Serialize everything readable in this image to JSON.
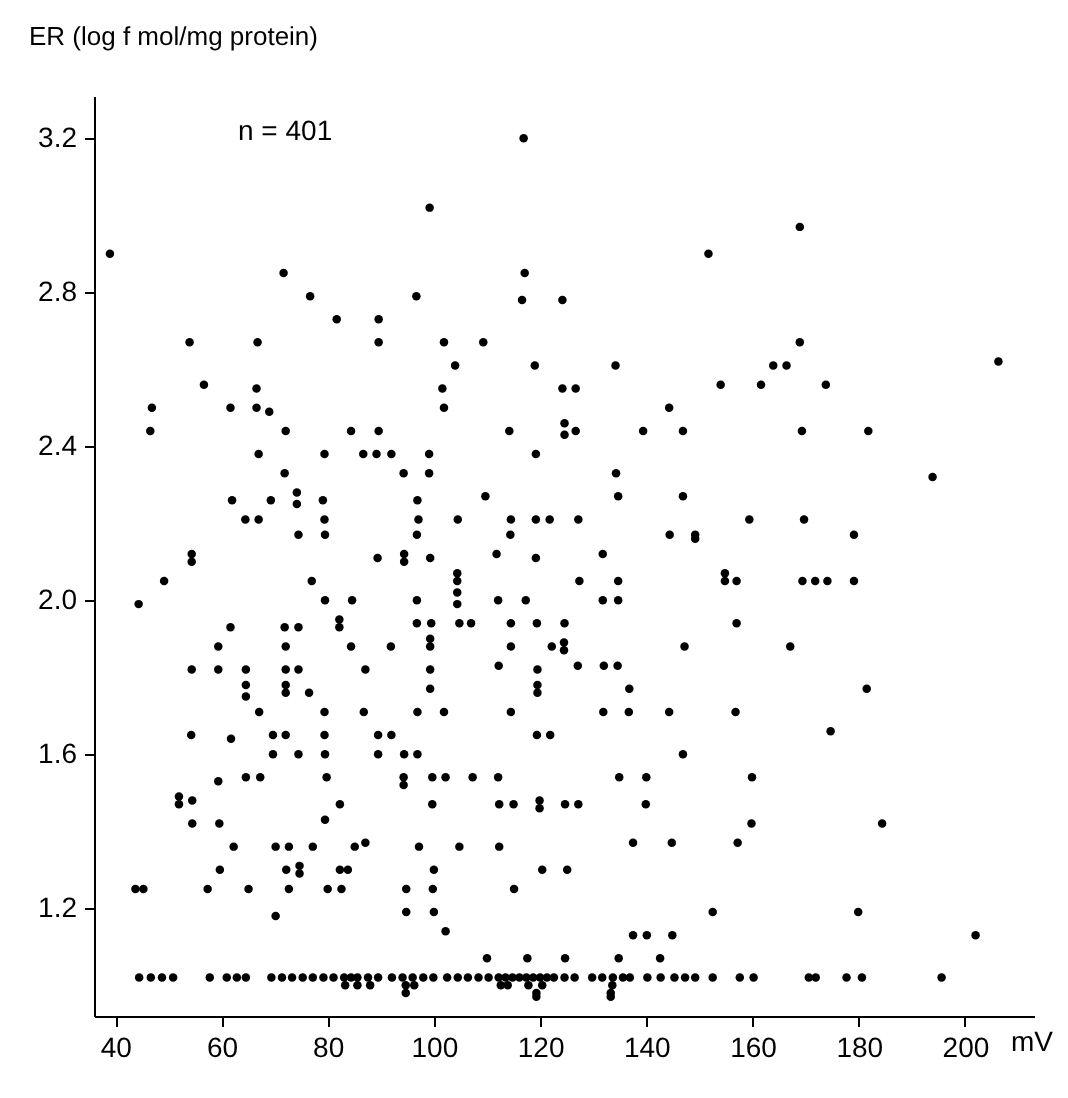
{
  "chart_data": {
    "type": "scatter",
    "xlabel": "mV",
    "ylabel": "ER (log f mol/mg protein)",
    "annotations": [
      "n = 401"
    ],
    "xlim": [
      36,
      213
    ],
    "ylim": [
      0.92,
      3.31
    ],
    "xticks": [
      40,
      60,
      80,
      100,
      120,
      140,
      160,
      180,
      200
    ],
    "yticks": [
      1.2,
      1.6,
      {
        "value": 2.0,
        "label": "2.0"
      },
      2.4,
      2.8,
      3.2
    ],
    "grid": false,
    "legend": false,
    "marker": "circle",
    "series": [
      {
        "color": "#000000",
        "x": [
          39.0,
          116.9,
          99.2,
          71.7,
          117.1,
          76.7,
          96.7,
          116.6,
          81.7,
          89.6,
          54.0,
          66.8,
          89.6,
          101.9,
          109.3,
          104.0,
          119.0,
          56.7,
          66.6,
          101.6,
          46.9,
          61.7,
          66.6,
          69.0,
          101.9,
          46.6,
          72.1,
          84.4,
          89.6,
          114.2,
          67.0,
          79.4,
          86.7,
          89.2,
          92.0,
          99.1,
          119.2,
          71.9,
          94.3,
          99.1,
          62.0,
          69.3,
          74.2,
          74.2,
          79.1,
          96.9,
          109.7,
          64.5,
          67.0,
          79.4,
          97.1,
          104.5,
          114.5,
          119.2,
          121.8
        ],
        "values": [
          2.9,
          3.2,
          3.02,
          2.85,
          2.85,
          2.79,
          2.79,
          2.78,
          2.73,
          2.73,
          2.67,
          2.67,
          2.67,
          2.67,
          2.67,
          2.61,
          2.61,
          2.56,
          2.55,
          2.55,
          2.5,
          2.5,
          2.5,
          2.49,
          2.5,
          2.44,
          2.44,
          2.44,
          2.44,
          2.44,
          2.38,
          2.38,
          2.38,
          2.38,
          2.38,
          2.38,
          2.38,
          2.33,
          2.33,
          2.33,
          2.26,
          2.26,
          2.28,
          2.25,
          2.26,
          2.26,
          2.27,
          2.21,
          2.21,
          2.21,
          2.21,
          2.21,
          2.21,
          2.21,
          2.21
        ]
      },
      {
        "color": "#000000",
        "x": [
          168.9,
          151.7,
          124.2,
          168.9,
          134.2,
          163.9,
          166.4,
          206.3,
          124.2,
          126.7,
          154.0,
          161.6,
          173.8,
          144.3,
          124.6,
          124.6,
          126.7,
          139.4,
          146.9,
          169.3,
          181.8,
          134.3,
          193.9,
          134.7,
          146.9,
          127.2,
          159.4,
          169.7
        ],
        "values": [
          2.97,
          2.9,
          2.78,
          2.67,
          2.61,
          2.61,
          2.61,
          2.62,
          2.55,
          2.55,
          2.56,
          2.56,
          2.56,
          2.5,
          2.46,
          2.43,
          2.44,
          2.44,
          2.44,
          2.44,
          2.44,
          2.33,
          2.32,
          2.27,
          2.27,
          2.21,
          2.21,
          2.21
        ]
      },
      {
        "color": "#000000",
        "x": [
          74.5,
          79.5,
          96.8,
          114.4,
          54.4,
          54.4,
          49.2,
          77.0,
          89.4,
          94.4,
          94.4,
          99.3,
          111.8,
          119.2,
          104.4,
          104.4,
          104.4,
          104.4,
          44.4,
          79.5,
          84.6,
          96.8,
          112.1,
          117.3,
          61.7,
          71.9,
          74.5,
          82.2,
          82.2,
          96.8,
          99.5,
          104.8,
          107.0,
          114.5,
          119.4,
          59.4,
          72.1,
          84.4,
          91.9,
          99.3,
          99.3,
          114.5,
          122.2,
          54.4,
          59.4,
          64.6,
          72.1,
          74.5,
          87.1,
          99.3,
          112.2,
          119.5,
          64.6,
          64.6,
          72.1,
          72.1,
          76.5,
          99.3,
          119.5,
          119.5,
          67.1,
          79.4,
          86.8,
          96.9,
          101.9,
          114.5,
          54.3,
          61.8,
          69.7,
          72.1,
          79.4,
          89.5,
          92.0,
          119.4,
          121.9,
          69.7,
          74.5,
          79.5,
          89.5,
          94.4,
          96.9,
          59.4,
          64.6,
          67.3,
          79.8,
          94.3,
          94.3,
          99.7,
          102.2,
          107.3,
          112.1,
          52.0,
          52.0,
          54.5,
          82.3,
          99.7,
          112.3,
          115.0,
          119.9,
          119.9,
          54.5,
          59.6,
          79.5,
          62.3,
          70.2,
          72.7,
          77.2,
          85.1,
          87.1,
          97.2,
          104.8,
          112.3,
          59.7,
          72.2,
          74.7,
          74.7,
          82.3,
          83.8,
          100.0,
          120.4,
          43.8,
          45.3,
          57.4,
          65.1,
          72.7,
          80.0,
          82.6,
          94.8,
          99.8,
          115.1,
          70.2,
          94.8,
          100.0,
          102.2,
          110.0,
          117.6
        ],
        "values": [
          2.17,
          2.17,
          2.17,
          2.17,
          2.12,
          2.1,
          2.05,
          2.05,
          2.11,
          2.12,
          2.1,
          2.11,
          2.12,
          2.11,
          2.07,
          2.05,
          2.02,
          1.99,
          1.99,
          2.0,
          2.0,
          2.0,
          2.0,
          2.0,
          1.93,
          1.93,
          1.93,
          1.95,
          1.93,
          1.94,
          1.94,
          1.94,
          1.94,
          1.94,
          1.94,
          1.88,
          1.88,
          1.88,
          1.88,
          1.9,
          1.88,
          1.88,
          1.88,
          1.82,
          1.82,
          1.82,
          1.82,
          1.82,
          1.82,
          1.82,
          1.83,
          1.82,
          1.78,
          1.75,
          1.78,
          1.76,
          1.76,
          1.77,
          1.78,
          1.76,
          1.71,
          1.71,
          1.71,
          1.71,
          1.71,
          1.71,
          1.65,
          1.64,
          1.65,
          1.65,
          1.65,
          1.65,
          1.65,
          1.65,
          1.65,
          1.6,
          1.6,
          1.6,
          1.6,
          1.6,
          1.6,
          1.53,
          1.54,
          1.54,
          1.54,
          1.54,
          1.52,
          1.54,
          1.54,
          1.54,
          1.54,
          1.49,
          1.47,
          1.48,
          1.47,
          1.47,
          1.47,
          1.47,
          1.48,
          1.46,
          1.42,
          1.42,
          1.43,
          1.36,
          1.36,
          1.36,
          1.36,
          1.36,
          1.37,
          1.36,
          1.36,
          1.36,
          1.3,
          1.3,
          1.31,
          1.29,
          1.3,
          1.3,
          1.3,
          1.3,
          1.25,
          1.25,
          1.25,
          1.25,
          1.25,
          1.25,
          1.25,
          1.25,
          1.25,
          1.25,
          1.18,
          1.19,
          1.19,
          1.14,
          1.07,
          1.07
        ]
      },
      {
        "color": "#000000",
        "x": [
          144.4,
          149.2,
          149.2,
          179.1,
          131.8,
          127.4,
          134.7,
          154.8,
          154.8,
          157.0,
          169.4,
          171.8,
          174.1,
          179.1,
          131.8,
          134.7,
          124.6,
          157.0,
          124.5,
          124.5,
          147.2,
          167.1,
          127.1,
          132.0,
          134.6,
          136.8,
          181.5,
          131.9,
          136.7,
          144.3,
          156.8,
          174.7,
          146.9,
          134.9,
          140.0,
          159.9,
          124.7,
          127.2,
          139.9,
          159.8,
          184.4,
          137.5,
          144.8,
          157.2,
          125.1,
          152.5,
          179.9,
          137.5,
          140.1,
          144.9,
          202.0,
          124.7,
          134.8,
          142.6
        ],
        "values": [
          2.17,
          2.17,
          2.16,
          2.17,
          2.12,
          2.05,
          2.05,
          2.07,
          2.05,
          2.05,
          2.05,
          2.05,
          2.05,
          2.05,
          2.0,
          2.0,
          1.94,
          1.94,
          1.89,
          1.87,
          1.88,
          1.88,
          1.83,
          1.83,
          1.83,
          1.77,
          1.77,
          1.71,
          1.71,
          1.71,
          1.71,
          1.66,
          1.6,
          1.54,
          1.54,
          1.54,
          1.47,
          1.47,
          1.47,
          1.42,
          1.42,
          1.37,
          1.37,
          1.37,
          1.3,
          1.19,
          1.19,
          1.13,
          1.13,
          1.13,
          1.13,
          1.07,
          1.07,
          1.07
        ]
      },
      {
        "color": "#000000",
        "x": [
          44.5,
          46.7,
          48.8,
          50.9,
          57.8,
          61.0,
          62.9,
          64.6,
          69.4,
          71.4,
          73.3,
          75.3,
          77.2,
          79.2,
          81.1,
          83.1,
          84.4,
          85.6,
          87.6,
          89.5,
          92.1,
          94.1,
          96.0,
          98.0,
          99.9,
          102.5,
          104.5,
          106.4,
          108.4,
          110.3,
          112.2,
          113.5,
          114.8,
          116.1,
          117.4,
          118.7,
          120.0,
          121.3,
          122.6,
          124.6,
          126.5,
          129.8,
          131.7,
          133.7,
          135.6,
          136.9,
          140.2,
          142.7,
          145.3,
          147.3,
          149.2,
          152.5,
          157.6,
          160.2,
          170.6,
          171.9,
          177.7,
          180.6,
          195.6
        ],
        "values": [
          1.02,
          1.02,
          1.02,
          1.02,
          1.02,
          1.02,
          1.02,
          1.02,
          1.02,
          1.02,
          1.02,
          1.02,
          1.02,
          1.02,
          1.02,
          1.02,
          1.02,
          1.02,
          1.02,
          1.02,
          1.02,
          1.02,
          1.02,
          1.02,
          1.02,
          1.02,
          1.02,
          1.02,
          1.02,
          1.02,
          1.02,
          1.02,
          1.02,
          1.02,
          1.02,
          1.02,
          1.02,
          1.02,
          1.02,
          1.02,
          1.02,
          1.02,
          1.02,
          1.02,
          1.02,
          1.02,
          1.02,
          1.02,
          1.02,
          1.02,
          1.02,
          1.02,
          1.02,
          1.02,
          1.02,
          1.02,
          1.02,
          1.02,
          1.02
        ]
      },
      {
        "color": "#000000",
        "x": [
          83.3,
          85.6,
          88.0,
          94.7,
          96.3,
          112.6,
          113.9,
          117.8,
          120.4,
          133.6,
          94.7,
          119.3,
          133.3,
          119.3,
          133.3
        ],
        "values": [
          1.0,
          1.0,
          1.0,
          1.0,
          1.0,
          1.0,
          1.0,
          1.0,
          1.0,
          1.0,
          0.98,
          0.98,
          0.98,
          0.97,
          0.97
        ]
      }
    ]
  }
}
